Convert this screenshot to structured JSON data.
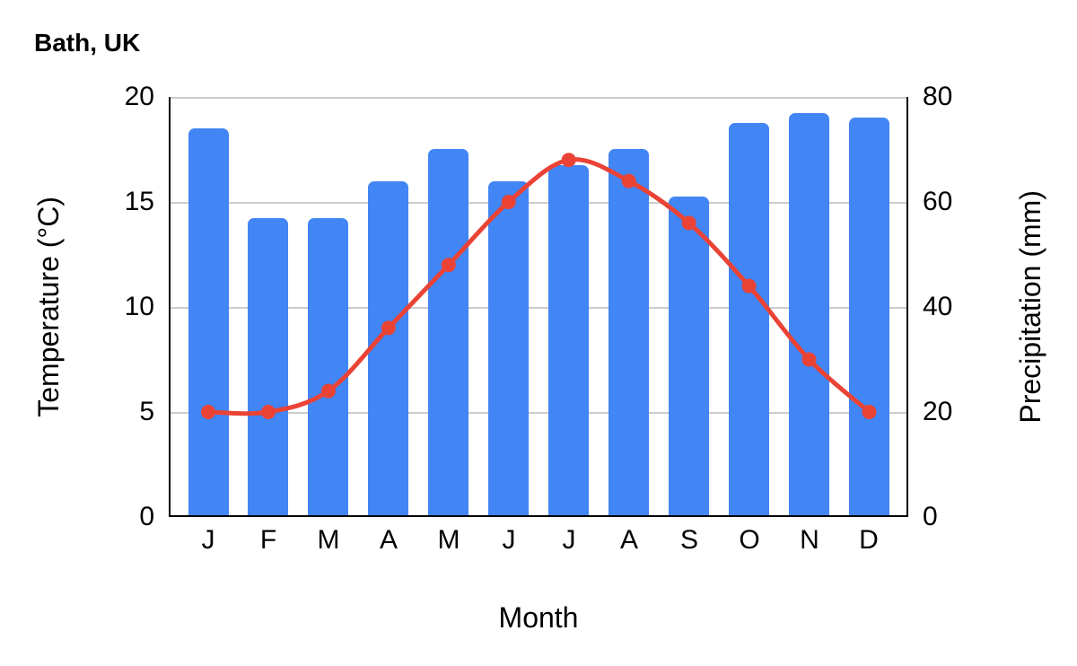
{
  "colors": {
    "bar": "#4285f4",
    "line": "#ea4335",
    "grid": "#cccccc",
    "axis": "#000000",
    "text": "#000000",
    "background": "#ffffff"
  },
  "chart_data": {
    "type": "bar+line",
    "title": "Bath, UK",
    "categories": [
      "J",
      "F",
      "M",
      "A",
      "M",
      "J",
      "J",
      "A",
      "S",
      "O",
      "N",
      "D"
    ],
    "series": [
      {
        "name": "Precipitation",
        "type": "bar",
        "axis": "right",
        "color": "#4285f4",
        "values": [
          74,
          57,
          57,
          64,
          70,
          64,
          67,
          70,
          61,
          75,
          77,
          76
        ]
      },
      {
        "name": "Temperature",
        "type": "line",
        "axis": "left",
        "color": "#ea4335",
        "values": [
          5,
          5,
          6,
          9,
          12,
          15,
          17,
          16,
          14,
          11,
          7.5,
          5
        ]
      }
    ],
    "xlabel": "Month",
    "axes": {
      "left": {
        "label": "Temperature (°C)",
        "min": 0,
        "max": 20,
        "ticks": [
          "20",
          "15",
          "10",
          "5",
          "0"
        ]
      },
      "right": {
        "label": "Precipitation (mm)",
        "min": 0,
        "max": 80,
        "ticks": [
          "80",
          "60",
          "40",
          "20",
          "0"
        ]
      }
    },
    "grid": true,
    "legend": "none"
  }
}
